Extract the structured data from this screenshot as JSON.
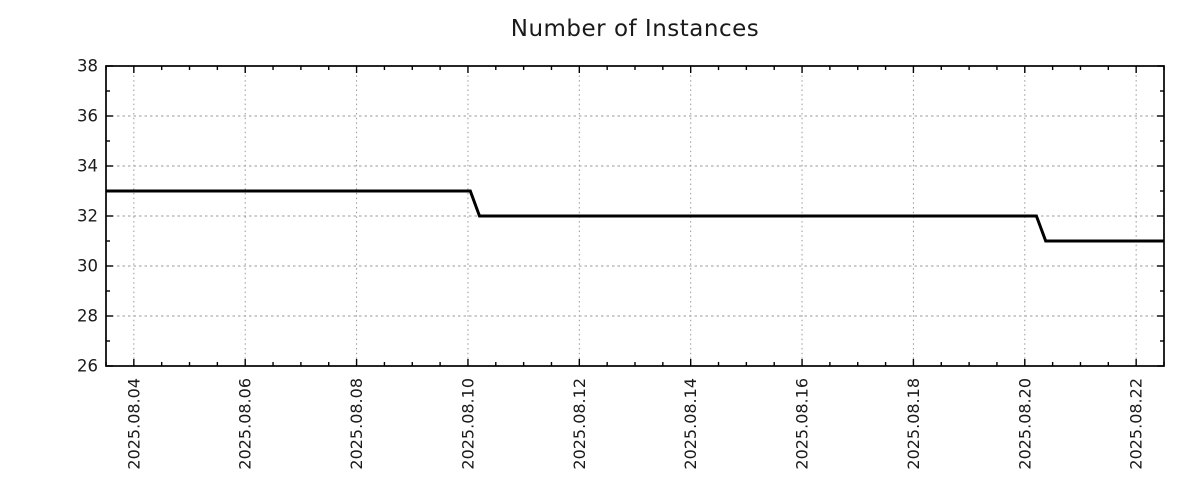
{
  "title": "Number of Instances",
  "chart_data": {
    "type": "line",
    "title": "Number of Instances",
    "xlabel": "",
    "ylabel": "",
    "legend": false,
    "grid": true,
    "x_type": "datetime",
    "x_range": [
      "2025-08-03 12:00",
      "2025-08-22 12:00"
    ],
    "y_range": [
      26,
      38
    ],
    "y_major_step": 2,
    "y_minor_step": 1,
    "y_tick_labels": [
      "26",
      "28",
      "30",
      "32",
      "34",
      "36",
      "38"
    ],
    "x_minor_interval_hours": 12,
    "x_major_ticks": [
      {
        "time": "2025-08-04 00:00",
        "label": "2025.08.04"
      },
      {
        "time": "2025-08-06 00:00",
        "label": "2025.08.06"
      },
      {
        "time": "2025-08-08 00:00",
        "label": "2025.08.08"
      },
      {
        "time": "2025-08-10 00:00",
        "label": "2025.08.10"
      },
      {
        "time": "2025-08-12 00:00",
        "label": "2025.08.12"
      },
      {
        "time": "2025-08-14 00:00",
        "label": "2025.08.14"
      },
      {
        "time": "2025-08-16 00:00",
        "label": "2025.08.16"
      },
      {
        "time": "2025-08-18 00:00",
        "label": "2025.08.18"
      },
      {
        "time": "2025-08-20 00:00",
        "label": "2025.08.20"
      },
      {
        "time": "2025-08-22 00:00",
        "label": "2025.08.22"
      }
    ],
    "colors": {
      "line": "#000000",
      "grid": "#999999",
      "axis": "#000000",
      "text": "#1a1a1a"
    },
    "series": [
      {
        "name": "Number of Instances",
        "color": "#000000",
        "width": 3,
        "points": [
          [
            "2025-08-03 12:00",
            33
          ],
          [
            "2025-08-10 01:00",
            33
          ],
          [
            "2025-08-10 05:00",
            32
          ],
          [
            "2025-08-20 05:00",
            32
          ],
          [
            "2025-08-20 09:00",
            31
          ],
          [
            "2025-08-22 12:00",
            31
          ]
        ]
      }
    ]
  }
}
